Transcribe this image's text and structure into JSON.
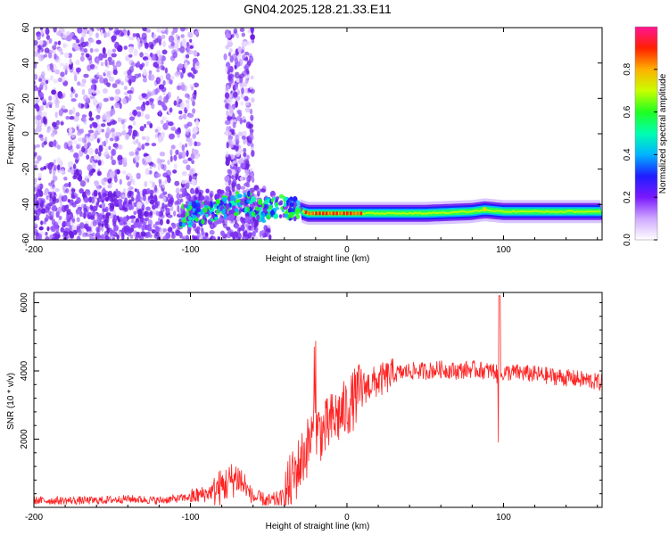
{
  "title": "GN04.2025.128.21.33.E11",
  "chart_data": [
    {
      "type": "heatmap",
      "xlabel": "Height of straight line (km)",
      "ylabel": "Frequency (Hz)",
      "xlim": [
        -200,
        163
      ],
      "ylim": [
        -60,
        60
      ],
      "xticks": [
        -200,
        -100,
        0,
        100
      ],
      "yticks": [
        -60,
        -40,
        -20,
        0,
        20,
        40,
        60
      ],
      "colorbar": {
        "label": "Normalized spectral amplitude",
        "range": [
          0,
          1
        ],
        "ticks": [
          "0.0",
          "0.2",
          "0.4",
          "0.6",
          "0.8"
        ],
        "colors": [
          "#ffffff",
          "#8a2be2",
          "#1e1eff",
          "#00c8ff",
          "#00ff66",
          "#a0ff00",
          "#ffff00",
          "#ff8000",
          "#ff0000",
          "#ff1493"
        ]
      },
      "ridge": {
        "description_free_values": true,
        "x": [
          -105,
          -95,
          -85,
          -75,
          -65,
          -55,
          -45,
          -35,
          -25,
          -15,
          -5,
          5,
          20,
          50,
          80,
          88,
          100,
          130,
          163
        ],
        "y": [
          -46,
          -45,
          -43,
          -40,
          -38,
          -44,
          -41,
          -42,
          -45,
          -45,
          -45,
          -45,
          -45,
          -45,
          -44,
          -43,
          -44,
          -44,
          -44
        ],
        "amplitude": [
          0.3,
          0.35,
          0.4,
          0.4,
          0.35,
          0.4,
          0.4,
          0.45,
          0.95,
          0.95,
          0.9,
          0.85,
          0.55,
          0.5,
          0.5,
          0.6,
          0.5,
          0.5,
          0.5
        ]
      },
      "noise_region_x": [
        -200,
        -60
      ]
    },
    {
      "type": "line",
      "xlabel": "Height of straight line (km)",
      "ylabel": "SNR (10 * v/v)",
      "xlim": [
        -200,
        163
      ],
      "ylim": [
        0,
        6300
      ],
      "xticks": [
        -200,
        -100,
        0,
        100
      ],
      "yticks": [
        2000,
        4000,
        6000
      ],
      "series": [
        {
          "color": "#ff2222",
          "x": [
            -200,
            -180,
            -160,
            -140,
            -120,
            -100,
            -90,
            -80,
            -70,
            -60,
            -50,
            -40,
            -35,
            -30,
            -25,
            -20,
            -15,
            -10,
            -5,
            0,
            5,
            10,
            15,
            20,
            30,
            40,
            50,
            60,
            70,
            80,
            90,
            95,
            97,
            100,
            110,
            120,
            130,
            140,
            150,
            163
          ],
          "y": [
            200,
            200,
            200,
            250,
            200,
            300,
            400,
            600,
            900,
            300,
            150,
            300,
            800,
            1300,
            1800,
            2300,
            2200,
            2500,
            2700,
            2900,
            3200,
            3500,
            3600,
            3700,
            3900,
            4000,
            4000,
            4050,
            4000,
            4050,
            4000,
            4000,
            3700,
            3950,
            3950,
            3900,
            3850,
            3800,
            3750,
            3650
          ]
        }
      ]
    }
  ]
}
